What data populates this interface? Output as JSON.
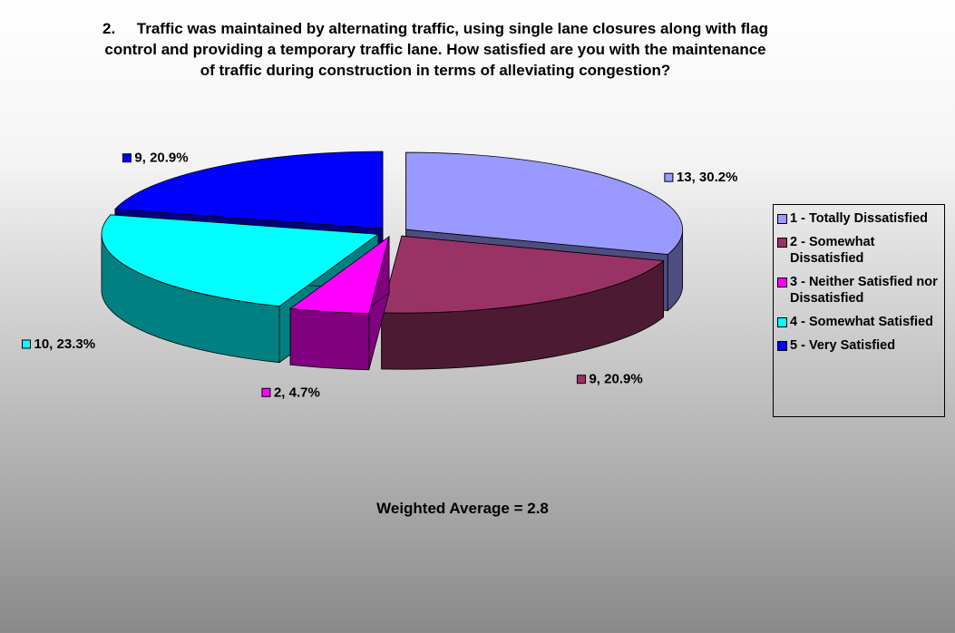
{
  "chart_data": {
    "type": "pie",
    "title": "2.     Traffic was maintained by alternating traffic, using single lane closures along with flag control and providing a temporary traffic lane. How satisfied are you with the maintenance of traffic during construction in terms of alleviating congestion?",
    "categories": [
      "1 - Totally Dissatisfied",
      "2 - Somewhat Dissatisfied",
      "3 - Neither Satisfied nor Dissatisfied",
      "4 - Somewhat Satisfied",
      "5 - Very Satisfied"
    ],
    "values": [
      13,
      9,
      2,
      10,
      9
    ],
    "value_labels": [
      "13, 30.2%",
      "9, 20.9%",
      "2, 4.7%",
      "10, 23.3%",
      "9, 20.9%"
    ],
    "colors": [
      "#9999ff",
      "#993366",
      "#ff00ff",
      "#00ffff",
      "#0000ff"
    ],
    "annotation": "Weighted Average = 2.8",
    "legend": "right"
  }
}
